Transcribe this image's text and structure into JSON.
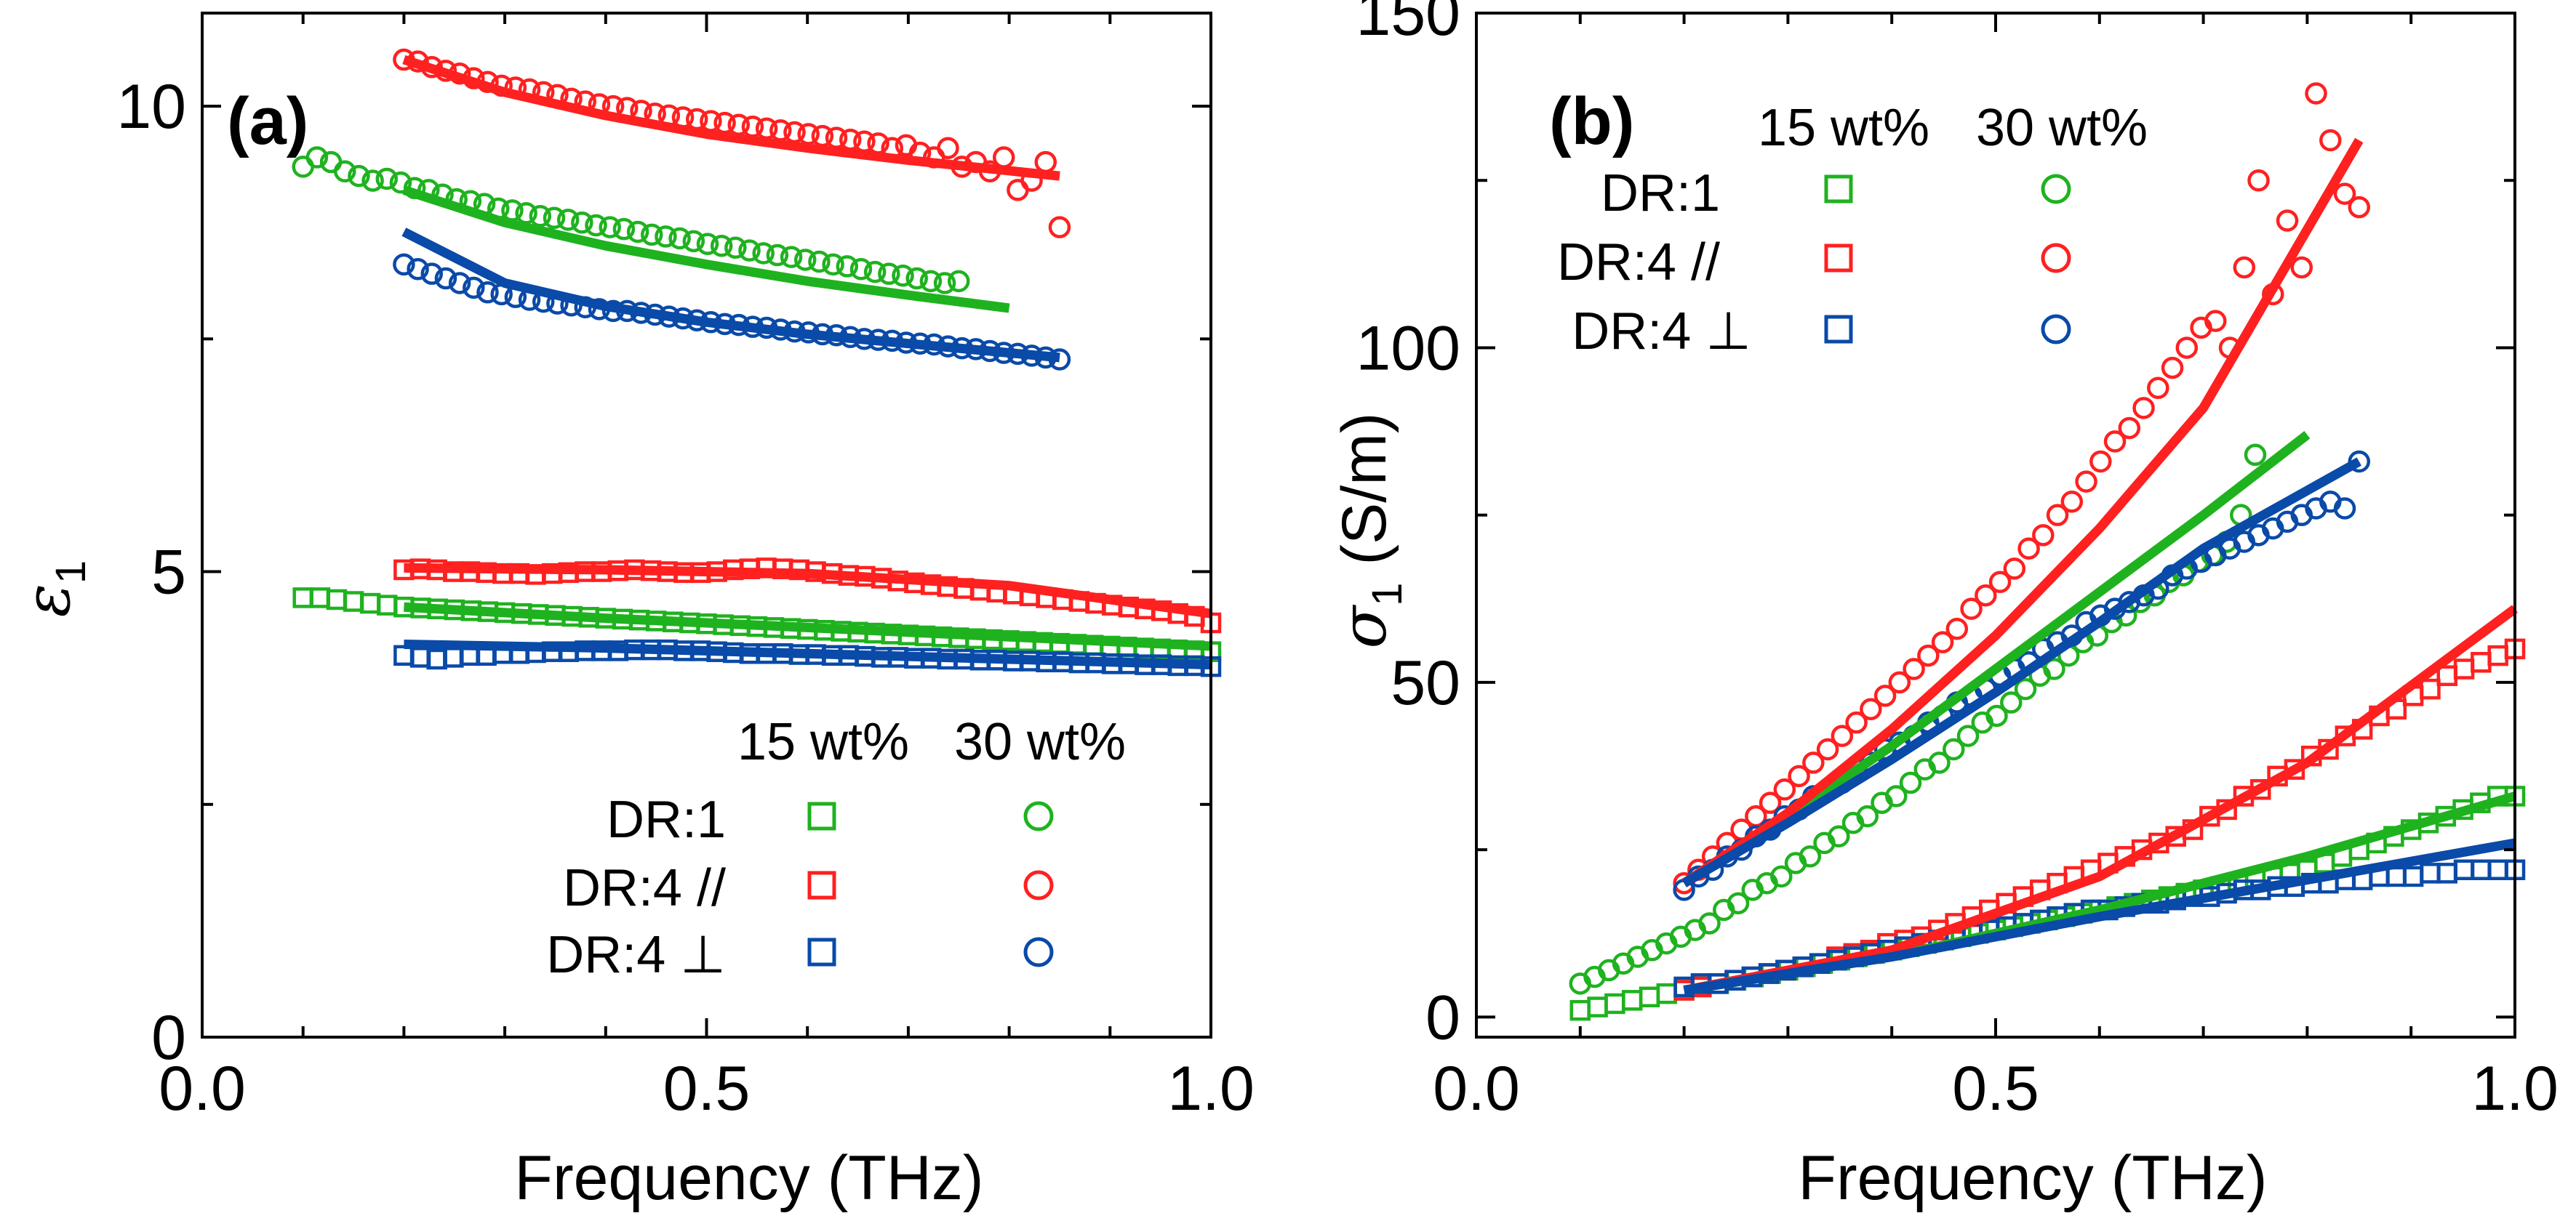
{
  "colors": {
    "DR1": "#1fb21f",
    "DR4par": "#ff2020",
    "DR4perp": "#0a4aa8"
  },
  "chart_data": [
    {
      "type": "scatter",
      "panel_label": "(a)",
      "xlabel": "Frequency (THz)",
      "ylabel_symbol": "ε",
      "ylabel_sub": "1",
      "xlim": [
        0.0,
        1.0
      ],
      "ylim": [
        0,
        11
      ],
      "xticks": [
        0.0,
        0.5,
        1.0
      ],
      "xtick_labels": [
        "0.0",
        "0.5",
        "1.0"
      ],
      "yticks": [
        0,
        5,
        10
      ],
      "ytick_labels": [
        "0",
        "5",
        "10"
      ],
      "legend": {
        "col_headers": [
          "15 wt%",
          "30 wt%"
        ],
        "rows": [
          {
            "label": "DR:1",
            "color_key": "DR1"
          },
          {
            "label": "DR:4 //",
            "color_key": "DR4par"
          },
          {
            "label": "DR:4 ⊥",
            "color_key": "DR4perp"
          }
        ],
        "position": "bottom-right"
      },
      "series": [
        {
          "name": "DR:1 30 wt% data",
          "marker": "circle",
          "color_key": "DR1",
          "x_range": [
            0.1,
            0.75
          ],
          "count": 48,
          "y": [
            9.35,
            9.45,
            9.4,
            9.3,
            9.25,
            9.2,
            9.22,
            9.18,
            9.12,
            9.1,
            9.05,
            9.0,
            8.98,
            8.95,
            8.9,
            8.88,
            8.85,
            8.82,
            8.8,
            8.78,
            8.75,
            8.72,
            8.7,
            8.68,
            8.65,
            8.62,
            8.6,
            8.58,
            8.55,
            8.52,
            8.5,
            8.48,
            8.45,
            8.42,
            8.4,
            8.38,
            8.35,
            8.33,
            8.3,
            8.28,
            8.25,
            8.22,
            8.2,
            8.18,
            8.15,
            8.12,
            8.1,
            8.12
          ]
        },
        {
          "name": "DR:4 // 30 wt% data",
          "marker": "circle",
          "color_key": "DR4par",
          "x_range": [
            0.2,
            0.85
          ],
          "count": 48,
          "y": [
            10.5,
            10.48,
            10.42,
            10.38,
            10.35,
            10.3,
            10.26,
            10.22,
            10.2,
            10.18,
            10.15,
            10.12,
            10.08,
            10.05,
            10.02,
            10.0,
            9.98,
            9.95,
            9.92,
            9.9,
            9.88,
            9.86,
            9.84,
            9.82,
            9.8,
            9.78,
            9.76,
            9.74,
            9.72,
            9.7,
            9.68,
            9.66,
            9.64,
            9.62,
            9.6,
            9.55,
            9.58,
            9.5,
            9.45,
            9.55,
            9.35,
            9.4,
            9.3,
            9.45,
            9.1,
            9.2,
            9.4,
            8.7
          ]
        },
        {
          "name": "DR:4 ⊥ 30 wt% data",
          "marker": "circle",
          "color_key": "DR4perp",
          "x_range": [
            0.2,
            0.85
          ],
          "count": 48,
          "y": [
            8.3,
            8.25,
            8.2,
            8.15,
            8.1,
            8.05,
            8.0,
            7.98,
            7.95,
            7.92,
            7.9,
            7.88,
            7.86,
            7.84,
            7.82,
            7.8,
            7.8,
            7.78,
            7.76,
            7.74,
            7.72,
            7.7,
            7.68,
            7.66,
            7.65,
            7.63,
            7.62,
            7.6,
            7.58,
            7.57,
            7.55,
            7.54,
            7.52,
            7.5,
            7.49,
            7.48,
            7.46,
            7.45,
            7.44,
            7.42,
            7.4,
            7.39,
            7.37,
            7.35,
            7.34,
            7.32,
            7.3,
            7.28
          ]
        },
        {
          "name": "DR:1 15 wt% data",
          "marker": "square",
          "color_key": "DR1",
          "x_range": [
            0.1,
            1.0
          ],
          "count": 55,
          "y": [
            4.72,
            4.72,
            4.7,
            4.68,
            4.66,
            4.64,
            4.62,
            4.61,
            4.6,
            4.59,
            4.58,
            4.57,
            4.56,
            4.55,
            4.54,
            4.53,
            4.52,
            4.51,
            4.5,
            4.49,
            4.48,
            4.47,
            4.46,
            4.45,
            4.44,
            4.43,
            4.42,
            4.41,
            4.4,
            4.39,
            4.38,
            4.37,
            4.36,
            4.35,
            4.34,
            4.33,
            4.32,
            4.31,
            4.3,
            4.29,
            4.28,
            4.27,
            4.26,
            4.25,
            4.24,
            4.23,
            4.22,
            4.21,
            4.2,
            4.19,
            4.18,
            4.17,
            4.16,
            4.15,
            4.14
          ]
        },
        {
          "name": "DR:4 // 15 wt% data",
          "marker": "square",
          "color_key": "DR4par",
          "x_range": [
            0.2,
            1.0
          ],
          "count": 50,
          "y": [
            5.02,
            5.03,
            5.02,
            5.0,
            5.0,
            4.99,
            4.98,
            4.98,
            4.97,
            4.98,
            4.99,
            5.0,
            5.0,
            5.01,
            5.02,
            5.01,
            5.0,
            4.99,
            4.99,
            5.0,
            5.02,
            5.03,
            5.04,
            5.03,
            5.02,
            5.0,
            4.98,
            4.96,
            4.95,
            4.93,
            4.9,
            4.88,
            4.86,
            4.84,
            4.82,
            4.8,
            4.78,
            4.76,
            4.74,
            4.72,
            4.7,
            4.68,
            4.66,
            4.64,
            4.62,
            4.6,
            4.58,
            4.55,
            4.52,
            4.45
          ]
        },
        {
          "name": "DR:4 ⊥ 15 wt% data",
          "marker": "square",
          "color_key": "DR4perp",
          "x_range": [
            0.2,
            1.0
          ],
          "count": 50,
          "y": [
            4.1,
            4.08,
            4.06,
            4.08,
            4.1,
            4.1,
            4.12,
            4.12,
            4.13,
            4.14,
            4.14,
            4.15,
            4.15,
            4.15,
            4.16,
            4.16,
            4.16,
            4.15,
            4.15,
            4.14,
            4.13,
            4.12,
            4.12,
            4.12,
            4.11,
            4.11,
            4.1,
            4.1,
            4.09,
            4.08,
            4.08,
            4.07,
            4.07,
            4.06,
            4.06,
            4.05,
            4.05,
            4.04,
            4.04,
            4.03,
            4.03,
            4.02,
            4.02,
            4.01,
            4.01,
            4.0,
            4.0,
            3.99,
            3.99,
            3.98
          ]
        },
        {
          "name": "DR:1 30 wt% fit",
          "marker": "line",
          "color_key": "DR1",
          "x": [
            0.2,
            0.3,
            0.4,
            0.5,
            0.6,
            0.7,
            0.8
          ],
          "y": [
            9.1,
            8.75,
            8.5,
            8.3,
            8.12,
            7.97,
            7.83
          ]
        },
        {
          "name": "DR:4 // 30 wt% fit",
          "marker": "line",
          "color_key": "DR4par",
          "x": [
            0.2,
            0.3,
            0.4,
            0.5,
            0.6,
            0.7,
            0.85
          ],
          "y": [
            10.5,
            10.15,
            9.9,
            9.7,
            9.55,
            9.42,
            9.25
          ]
        },
        {
          "name": "DR:4 ⊥ 30 wt% fit",
          "marker": "line",
          "color_key": "DR4perp",
          "x": [
            0.2,
            0.3,
            0.4,
            0.5,
            0.6,
            0.7,
            0.85
          ],
          "y": [
            8.65,
            8.1,
            7.85,
            7.68,
            7.55,
            7.45,
            7.3
          ]
        },
        {
          "name": "DR:1 15 wt% fit",
          "marker": "line",
          "color_key": "DR1",
          "x": [
            0.2,
            0.4,
            0.6,
            0.8,
            1.0
          ],
          "y": [
            4.62,
            4.5,
            4.4,
            4.3,
            4.2
          ]
        },
        {
          "name": "DR:4 // 15 wt% fit",
          "marker": "line",
          "color_key": "DR4par",
          "x": [
            0.2,
            0.4,
            0.6,
            0.8,
            1.0
          ],
          "y": [
            5.04,
            5.02,
            4.98,
            4.85,
            4.55
          ]
        },
        {
          "name": "DR:4 ⊥ 15 wt% fit",
          "marker": "line",
          "color_key": "DR4perp",
          "x": [
            0.2,
            0.4,
            0.6,
            0.8,
            1.0
          ],
          "y": [
            4.22,
            4.18,
            4.12,
            4.06,
            4.0
          ]
        }
      ]
    },
    {
      "type": "scatter",
      "panel_label": "(b)",
      "xlabel": "Frequency (THz)",
      "ylabel_symbol": "σ",
      "ylabel_sub": "1",
      "ylabel_unit": " (S/m)",
      "xlim": [
        0.0,
        1.0
      ],
      "ylim": [
        -3,
        150
      ],
      "xticks": [
        0.0,
        0.5,
        1.0
      ],
      "xtick_labels": [
        "0.0",
        "0.5",
        "1.0"
      ],
      "yticks": [
        0,
        50,
        100,
        150
      ],
      "ytick_labels": [
        "0",
        "50",
        "100",
        "150"
      ],
      "legend": {
        "col_headers": [
          "15 wt%",
          "30 wt%"
        ],
        "rows": [
          {
            "label": "DR:1",
            "color_key": "DR1"
          },
          {
            "label": "DR:4 //",
            "color_key": "DR4par"
          },
          {
            "label": "DR:4 ⊥",
            "color_key": "DR4perp"
          }
        ],
        "position": "top-left"
      },
      "series": [
        {
          "name": "DR:1 30 wt% data",
          "marker": "circle",
          "color_key": "DR1",
          "x_range": [
            0.1,
            0.75
          ],
          "count": 48,
          "y": [
            5,
            6,
            7,
            8,
            9,
            10,
            11,
            12,
            13,
            14,
            16,
            17,
            19,
            20,
            21,
            23,
            24,
            26,
            27,
            29,
            30,
            32,
            33,
            35,
            37,
            38,
            40,
            42,
            44,
            45,
            47,
            49,
            51,
            52,
            54,
            56,
            57,
            59,
            60,
            62,
            63,
            65,
            66,
            68,
            69,
            71,
            75,
            84
          ]
        },
        {
          "name": "DR:4 // 30 wt% data",
          "marker": "circle",
          "color_key": "DR4par",
          "x_range": [
            0.2,
            0.85
          ],
          "count": 48,
          "y": [
            20,
            22,
            24,
            26,
            28,
            30,
            32,
            34,
            36,
            38,
            40,
            42,
            44,
            46,
            48,
            50,
            52,
            54,
            56,
            58,
            61,
            63,
            65,
            67,
            70,
            72,
            75,
            77,
            80,
            83,
            86,
            88,
            91,
            94,
            97,
            100,
            103,
            104,
            100,
            112,
            125,
            108,
            119,
            112,
            138,
            131,
            123,
            121
          ]
        },
        {
          "name": "DR:4 ⊥ 30 wt% data",
          "marker": "circle",
          "color_key": "DR4perp",
          "x_range": [
            0.2,
            0.85
          ],
          "count": 48,
          "y": [
            19,
            21,
            22,
            24,
            25,
            27,
            28,
            30,
            31,
            33,
            34,
            35,
            37,
            38,
            40,
            41,
            42,
            44,
            45,
            47,
            48,
            49,
            51,
            52,
            53,
            55,
            56,
            57,
            59,
            60,
            61,
            62,
            63,
            64,
            66,
            67,
            68,
            69,
            70,
            71,
            72,
            73,
            74,
            75,
            76,
            77,
            76,
            83
          ]
        },
        {
          "name": "DR:1 15 wt% data",
          "marker": "square",
          "color_key": "DR1",
          "x_range": [
            0.1,
            1.0
          ],
          "count": 55,
          "y": [
            1,
            1.5,
            2,
            2.5,
            3,
            3.5,
            4,
            4.5,
            5,
            5.5,
            6,
            6.5,
            7,
            7.5,
            8,
            8.5,
            9,
            9.5,
            10,
            10.5,
            11,
            11.5,
            12,
            12.5,
            13,
            13.5,
            14,
            14.5,
            15,
            15.5,
            16,
            16.5,
            17,
            17.5,
            18,
            18.5,
            19,
            19.5,
            20,
            20.5,
            21,
            21.5,
            22,
            23,
            24,
            25,
            26,
            27,
            28,
            29,
            30,
            31,
            32,
            33,
            33
          ]
        },
        {
          "name": "DR:4 // 15 wt% data",
          "marker": "square",
          "color_key": "DR4par",
          "x_range": [
            0.2,
            1.0
          ],
          "count": 50,
          "y": [
            4,
            4.5,
            5,
            5.5,
            6,
            6.5,
            7,
            7.5,
            8,
            9,
            9.5,
            10,
            11,
            11.5,
            12,
            13,
            14,
            15,
            16,
            17,
            18,
            19,
            20,
            21,
            22,
            23,
            24,
            25,
            26,
            27,
            28,
            30,
            31,
            33,
            34,
            36,
            37,
            39,
            40,
            42,
            43,
            45,
            46,
            48,
            49,
            51,
            52,
            53,
            54,
            55
          ]
        },
        {
          "name": "DR:4 ⊥ 15 wt% data",
          "marker": "square",
          "color_key": "DR4perp",
          "x_range": [
            0.2,
            1.0
          ],
          "count": 50,
          "y": [
            4.5,
            5,
            5,
            5.5,
            6,
            6.5,
            7,
            7.5,
            8,
            8.5,
            9,
            9.5,
            10,
            10.5,
            11,
            11.5,
            12,
            12.5,
            13,
            13.5,
            14,
            14.5,
            15,
            15.5,
            16,
            16,
            16.5,
            17,
            17,
            17.5,
            18,
            18,
            18.5,
            19,
            19,
            19.5,
            19.5,
            20,
            20,
            20.5,
            20.5,
            21,
            21,
            21,
            21.5,
            21.5,
            22,
            22,
            22,
            22
          ]
        },
        {
          "name": "DR:1 30 wt% fit",
          "marker": "line",
          "color_key": "DR1",
          "x": [
            0.2,
            0.3,
            0.4,
            0.5,
            0.6,
            0.7,
            0.8
          ],
          "y": [
            20,
            30,
            40.5,
            52,
            63.5,
            75,
            87
          ]
        },
        {
          "name": "DR:4 // 30 wt% fit",
          "marker": "line",
          "color_key": "DR4par",
          "x": [
            0.2,
            0.3,
            0.4,
            0.5,
            0.6,
            0.7,
            0.85
          ],
          "y": [
            20,
            30.5,
            43,
            57,
            73,
            91,
            131
          ]
        },
        {
          "name": "DR:4 ⊥ 30 wt% fit",
          "marker": "line",
          "color_key": "DR4perp",
          "x": [
            0.2,
            0.3,
            0.4,
            0.5,
            0.6,
            0.7,
            0.85
          ],
          "y": [
            20,
            29,
            38.5,
            48.5,
            59,
            70,
            83
          ]
        },
        {
          "name": "DR:1 15 wt% fit",
          "marker": "line",
          "color_key": "DR1",
          "x": [
            0.2,
            0.4,
            0.6,
            0.8,
            1.0
          ],
          "y": [
            4,
            9,
            16,
            24,
            33
          ]
        },
        {
          "name": "DR:4 // 15 wt% fit",
          "marker": "line",
          "color_key": "DR4par",
          "x": [
            0.2,
            0.4,
            0.6,
            0.8,
            1.0
          ],
          "y": [
            4,
            10,
            21,
            38,
            61
          ]
        },
        {
          "name": "DR:4 ⊥ 15 wt% fit",
          "marker": "line",
          "color_key": "DR4perp",
          "x": [
            0.2,
            0.4,
            0.6,
            0.8,
            1.0
          ],
          "y": [
            4,
            9,
            15,
            20.5,
            26
          ]
        }
      ]
    }
  ]
}
